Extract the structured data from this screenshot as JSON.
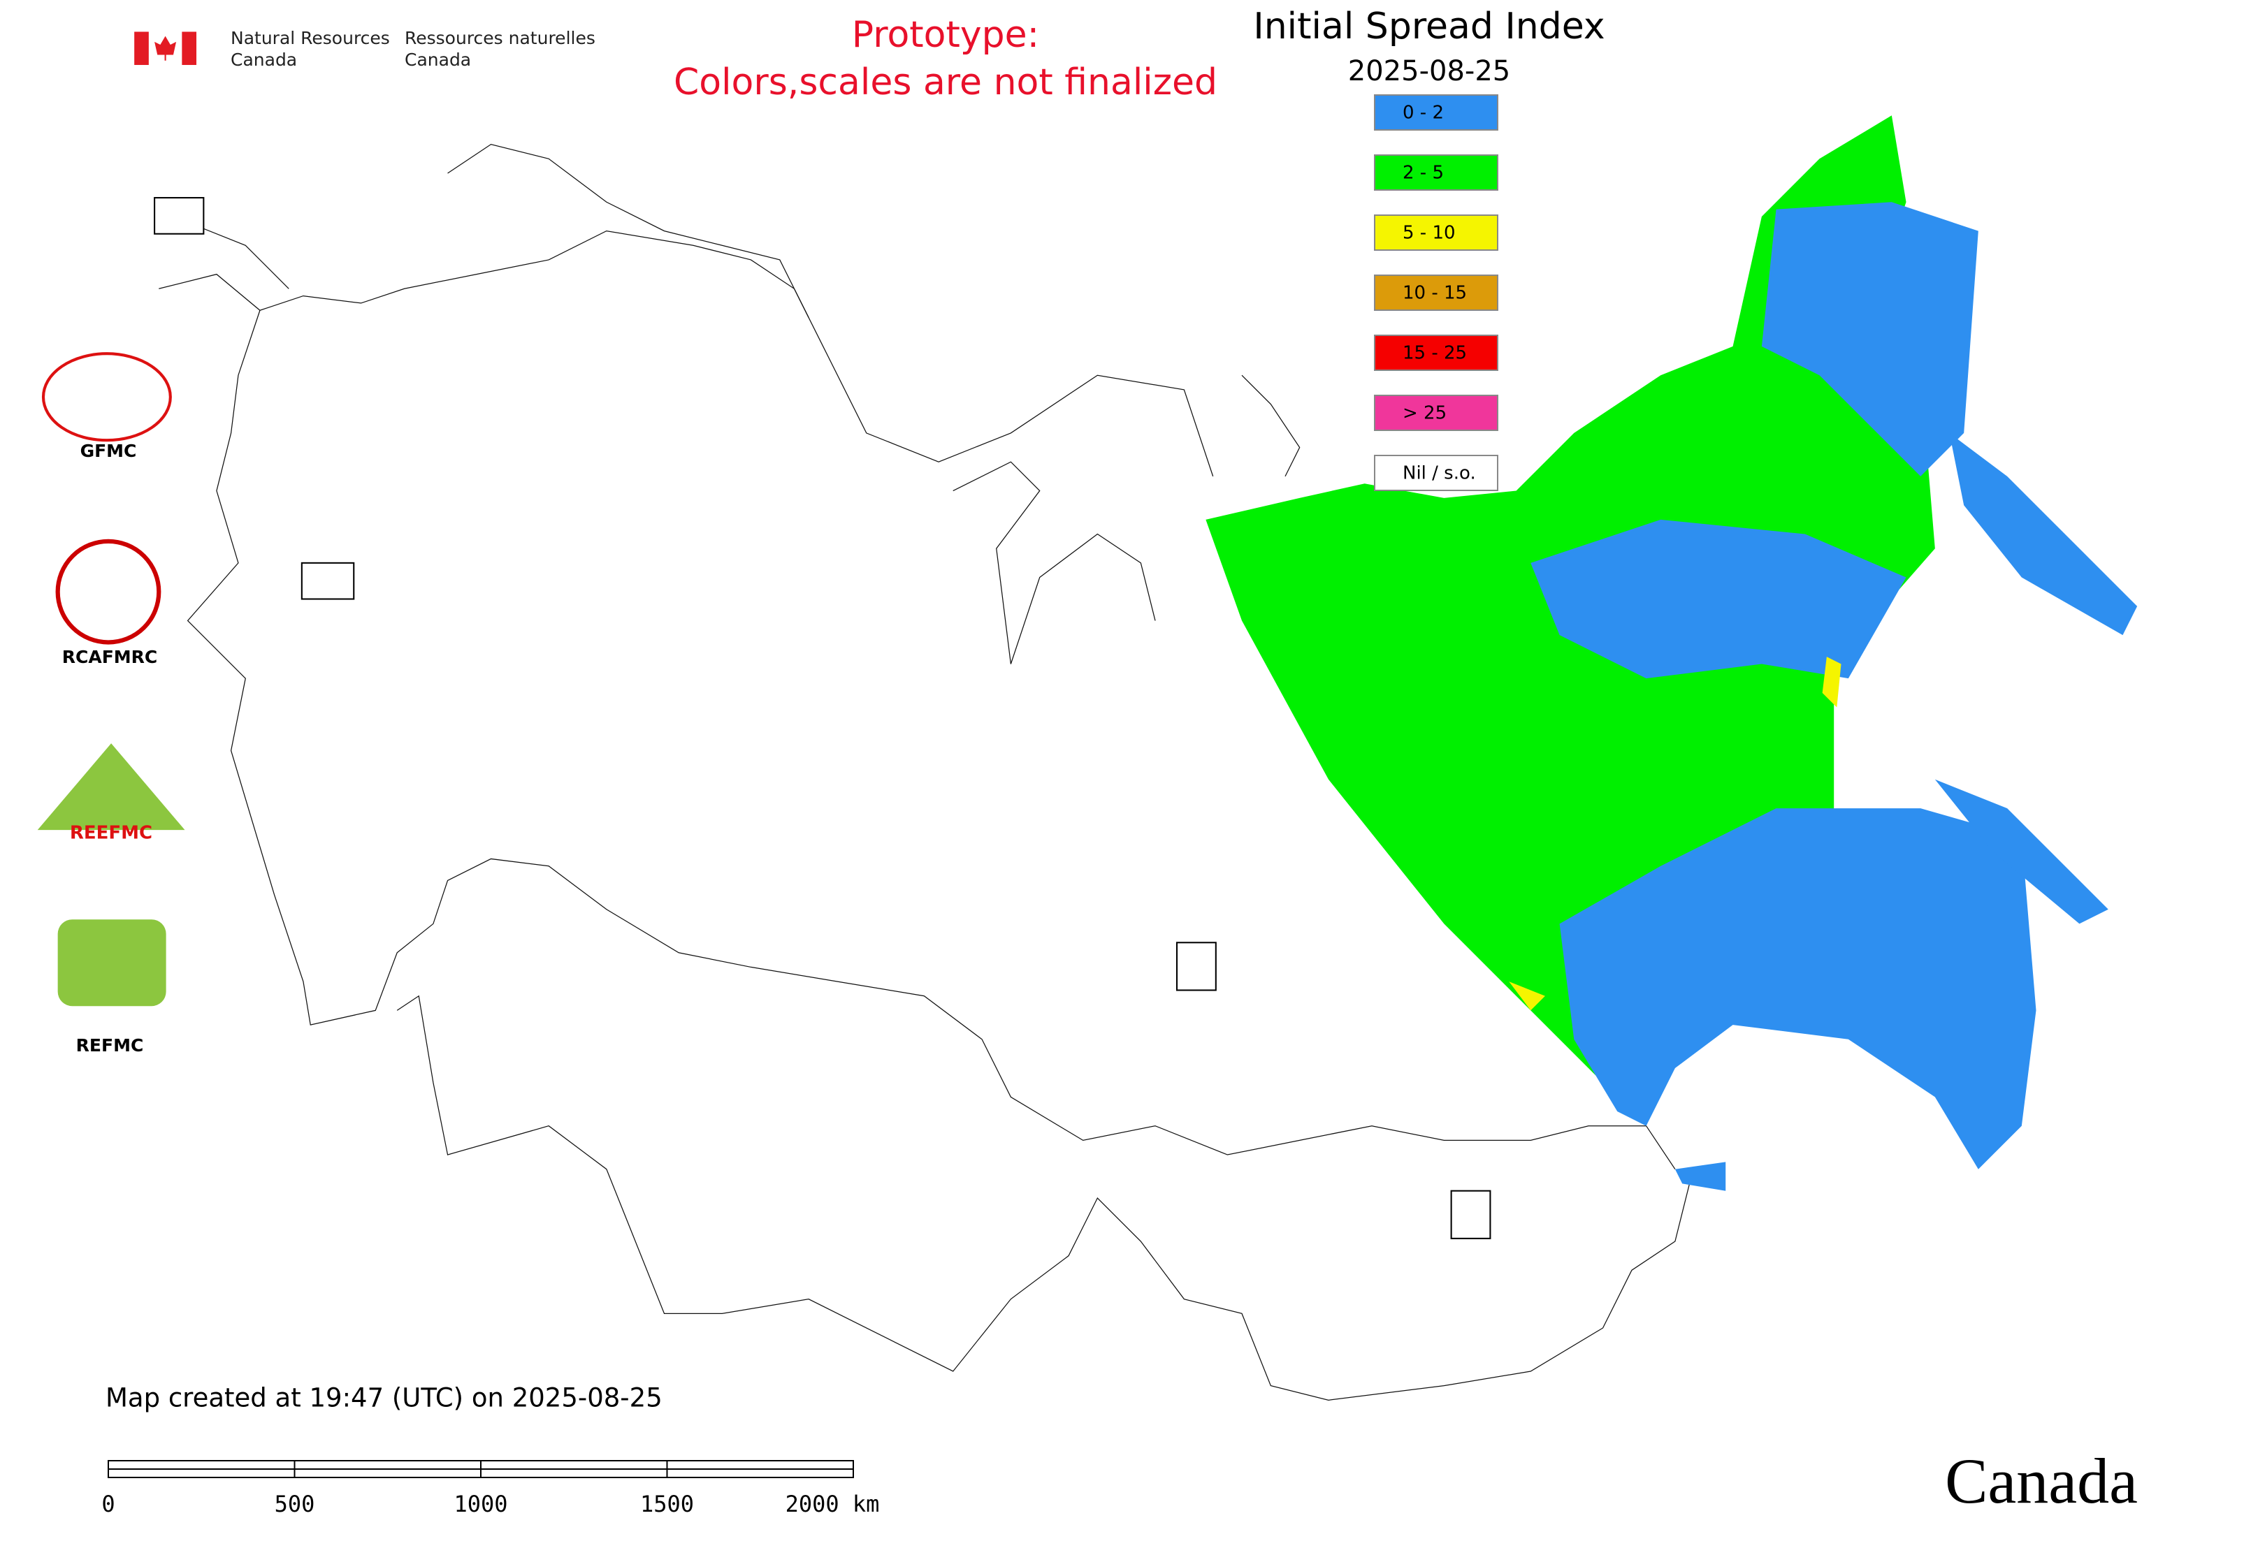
{
  "header": {
    "agency_en": [
      "Natural Resources",
      "Canada"
    ],
    "agency_fr": [
      "Ressources naturelles",
      "Canada"
    ]
  },
  "notice": [
    "Prototype:",
    "Colors,scales are not finalized"
  ],
  "title": "Initial Spread Index",
  "date": "2025-08-25",
  "legend": [
    {
      "label": "0 - 2",
      "color": "#2e8ff0"
    },
    {
      "label": "2 - 5",
      "color": "#00f000"
    },
    {
      "label": "5 - 10",
      "color": "#f5f500"
    },
    {
      "label": "10 - 15",
      "color": "#dc9b0a"
    },
    {
      "label": "15 - 25",
      "color": "#f50000"
    },
    {
      "label": "> 25",
      "color": "#f0369b"
    },
    {
      "label": "Nil / s.o.",
      "color": "#ffffff"
    }
  ],
  "logos": [
    "GFMC",
    "RCAFMRC",
    "REEFMC",
    "REFMC"
  ],
  "footer": "Map created at 19:47 (UTC) on 2025-08-25",
  "scale_bar": {
    "ticks": [
      0,
      500,
      1000,
      1500,
      {
        "value": 2000,
        "label": "2000 km"
      }
    ]
  },
  "wordmark": "Canada"
}
